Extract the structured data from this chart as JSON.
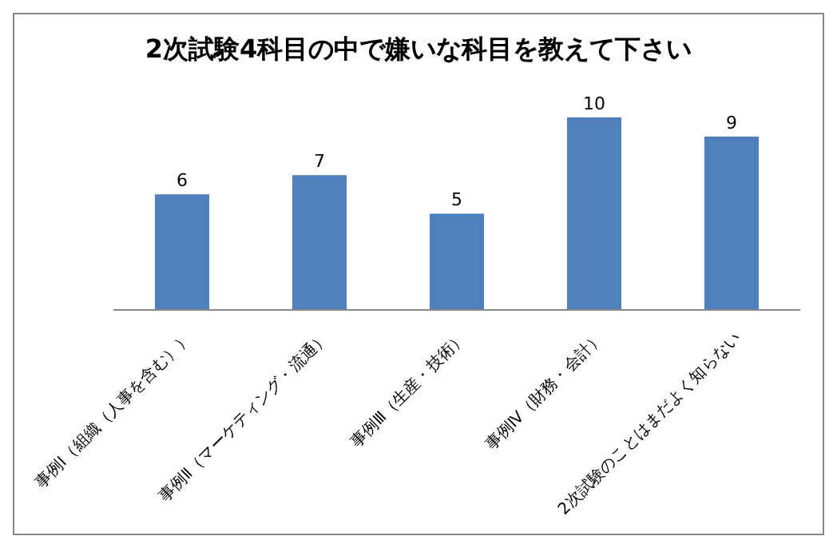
{
  "chart_data": {
    "type": "bar",
    "title": "2次試験4科目の中で嫌いな科目を教えて下さい",
    "categories": [
      "事例Ⅰ（組織（人事を含む））",
      "事例Ⅱ（マーケティング・流通）",
      "事例Ⅲ（生産・技術）",
      "事例Ⅳ（財務・会計）",
      "2次試験のことはまだよく知らない"
    ],
    "values": [
      6,
      7,
      5,
      10,
      9
    ],
    "color": "#4f81bd",
    "data_labels": true,
    "grid": false,
    "legend": false
  }
}
